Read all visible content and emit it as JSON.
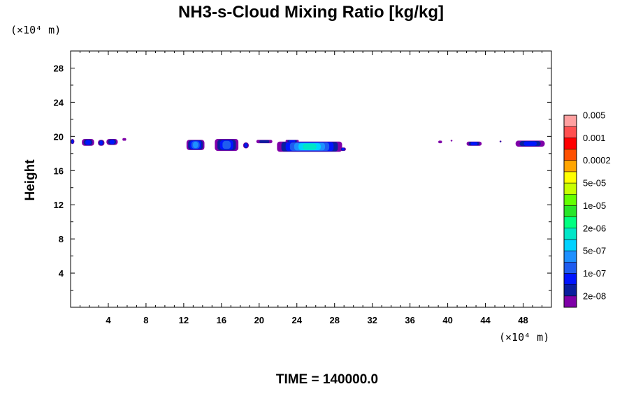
{
  "chart_data": {
    "type": "heatmap",
    "title": "NH3-s-Cloud Mixing Ratio [kg/kg]",
    "xlabel": "",
    "ylabel": "Height",
    "x_unit": "(×10⁴ m)",
    "y_unit": "(×10⁴ m)",
    "xlim": [
      0,
      51
    ],
    "ylim": [
      0,
      30
    ],
    "x_ticks": [
      4,
      8,
      12,
      16,
      20,
      24,
      28,
      32,
      36,
      40,
      44,
      48
    ],
    "y_ticks": [
      4,
      8,
      12,
      16,
      20,
      24,
      28
    ],
    "grid": false,
    "footer": "TIME = 140000.0",
    "colorbar": {
      "colors": [
        "#7f00a8",
        "#0a1e9e",
        "#0014ff",
        "#1e5cf0",
        "#1e90ff",
        "#00d2ff",
        "#00e6c8",
        "#00ff80",
        "#28e628",
        "#64ff00",
        "#c8ff00",
        "#ffff00",
        "#ffa500",
        "#ff5000",
        "#ff0000",
        "#ff5050",
        "#ffa0a0"
      ],
      "labels": [
        "2e-08",
        "1e-07",
        "5e-07",
        "2e-06",
        "1e-05",
        "5e-05",
        "0.0002",
        "0.001",
        "0.005"
      ]
    },
    "cloud_patches": [
      {
        "x0": 0.0,
        "x1": 0.4,
        "y0": 19.1,
        "y1": 19.7,
        "level": 2
      },
      {
        "x0": 1.2,
        "x1": 2.5,
        "y0": 18.9,
        "y1": 19.7,
        "level": 2
      },
      {
        "x0": 2.9,
        "x1": 3.6,
        "y0": 18.9,
        "y1": 19.6,
        "level": 2
      },
      {
        "x0": 3.8,
        "x1": 5.0,
        "y0": 19.0,
        "y1": 19.7,
        "level": 2
      },
      {
        "x0": 5.5,
        "x1": 5.9,
        "y0": 19.5,
        "y1": 19.8,
        "level": 0
      },
      {
        "x0": 12.3,
        "x1": 14.2,
        "y0": 18.4,
        "y1": 19.6,
        "level": 4
      },
      {
        "x0": 15.3,
        "x1": 17.8,
        "y0": 18.3,
        "y1": 19.7,
        "level": 3
      },
      {
        "x0": 18.3,
        "x1": 18.9,
        "y0": 18.6,
        "y1": 19.3,
        "level": 2
      },
      {
        "x0": 19.7,
        "x1": 21.4,
        "y0": 19.2,
        "y1": 19.6,
        "level": 1
      },
      {
        "x0": 21.9,
        "x1": 28.8,
        "y0": 18.2,
        "y1": 19.4,
        "level": 6
      },
      {
        "x0": 22.8,
        "x1": 24.2,
        "y0": 19.3,
        "y1": 19.6,
        "level": 2
      },
      {
        "x0": 28.6,
        "x1": 29.2,
        "y0": 18.3,
        "y1": 18.7,
        "level": 2
      },
      {
        "x0": 39.0,
        "x1": 39.4,
        "y0": 19.2,
        "y1": 19.5,
        "level": 0
      },
      {
        "x0": 40.3,
        "x1": 40.5,
        "y0": 19.4,
        "y1": 19.6,
        "level": 0
      },
      {
        "x0": 42.0,
        "x1": 43.6,
        "y0": 18.9,
        "y1": 19.4,
        "level": 2
      },
      {
        "x0": 45.5,
        "x1": 45.7,
        "y0": 19.3,
        "y1": 19.5,
        "level": 1
      },
      {
        "x0": 47.2,
        "x1": 50.3,
        "y0": 18.8,
        "y1": 19.5,
        "level": 2
      }
    ]
  }
}
